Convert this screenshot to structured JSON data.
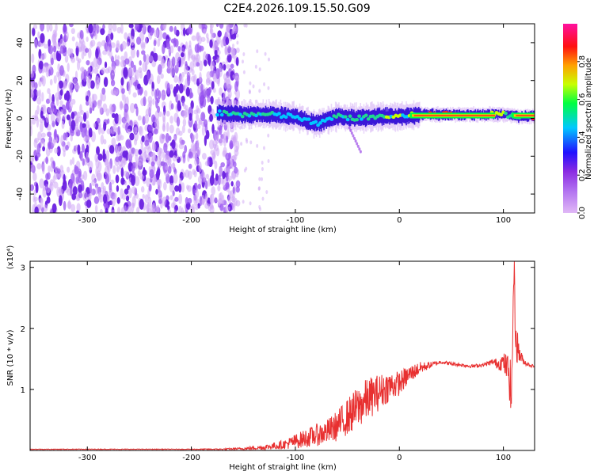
{
  "title": "C2E4.2026.109.15.50.G09",
  "colors": {
    "noise": "#9a55f2",
    "band_core": "#20d890",
    "band_edge": "#3a16d8",
    "line_center": "#ff2020",
    "snr_line": "#e83030"
  },
  "chart_data": [
    {
      "type": "heatmap",
      "name": "spectrogram",
      "xlabel": "Height of straight line (km)",
      "ylabel": "Frequency (Hz)",
      "xlim": [
        -355,
        130
      ],
      "ylim": [
        -50,
        50
      ],
      "xticks": [
        "-300",
        "-200",
        "-100",
        "0",
        "100"
      ],
      "yticks": [
        "40",
        "20",
        "0",
        "-20",
        "-40"
      ],
      "colorbar": {
        "label": "Normalized spectral amplitude",
        "range": [
          0,
          1
        ],
        "ticks": [
          "0.0",
          "0.2",
          "0.4",
          "0.6",
          "0.8"
        ],
        "colormap": [
          "#e0b8f6",
          "#8a2be2",
          "#2010ff",
          "#00c8ff",
          "#00ff40",
          "#c8ff00",
          "#ffa000",
          "#ff1010",
          "#ff10a0"
        ]
      },
      "noise_region_x": [
        -355,
        -165
      ],
      "band": {
        "x": [
          -175,
          -150,
          -125,
          -100,
          -80,
          -60,
          -40,
          -20,
          0,
          20,
          50,
          80,
          100,
          115,
          130
        ],
        "center_freq": [
          3,
          2,
          2,
          1,
          -3,
          1,
          0,
          1,
          1,
          2,
          2,
          2,
          2,
          1,
          1
        ],
        "amplitude": [
          0.4,
          0.45,
          0.42,
          0.35,
          0.3,
          0.45,
          0.5,
          0.55,
          0.7,
          0.92,
          0.95,
          0.95,
          0.6,
          0.55,
          0.9
        ]
      }
    },
    {
      "type": "line",
      "name": "snr",
      "xlabel": "Height of straight line (km)",
      "ylabel": "SNR (10 * v/v)",
      "scale_label": "(x10⁴)",
      "xlim": [
        -355,
        130
      ],
      "ylim": [
        0,
        3.1
      ],
      "xticks": [
        "-300",
        "-200",
        "-100",
        "0",
        "100"
      ],
      "yticks": [
        "3",
        "2",
        "1"
      ],
      "series": [
        {
          "x": [
            -355,
            -300,
            -250,
            -200,
            -170,
            -150,
            -130,
            -110,
            -100,
            -90,
            -80,
            -70,
            -60,
            -50,
            -40,
            -30,
            -20,
            -10,
            0,
            10,
            20,
            30,
            40,
            50,
            60,
            70,
            80,
            90,
            95,
            100,
            105,
            108,
            110,
            112,
            115,
            118,
            120,
            125,
            130
          ],
          "y": [
            0.02,
            0.02,
            0.02,
            0.02,
            0.02,
            0.03,
            0.05,
            0.1,
            0.15,
            0.2,
            0.25,
            0.3,
            0.4,
            0.55,
            0.7,
            0.85,
            0.95,
            1.05,
            1.1,
            1.25,
            1.35,
            1.4,
            1.45,
            1.42,
            1.4,
            1.38,
            1.4,
            1.45,
            1.42,
            1.45,
            1.3,
            0.9,
            3.05,
            1.8,
            1.6,
            1.5,
            1.45,
            1.4,
            1.38
          ],
          "noise_amplitude": [
            0.005,
            0.005,
            0.005,
            0.005,
            0.01,
            0.02,
            0.04,
            0.08,
            0.12,
            0.15,
            0.18,
            0.2,
            0.25,
            0.3,
            0.35,
            0.35,
            0.3,
            0.25,
            0.2,
            0.15,
            0.1,
            0.05,
            0.03,
            0.03,
            0.03,
            0.03,
            0.03,
            0.05,
            0.1,
            0.15,
            0.3,
            0.5,
            0.4,
            0.35,
            0.2,
            0.08,
            0.05,
            0.03,
            0.02
          ]
        }
      ]
    }
  ]
}
